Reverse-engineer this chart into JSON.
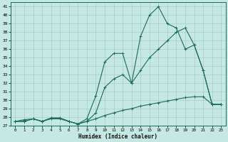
{
  "xlabel": "Humidex (Indice chaleur)",
  "bg_color": "#c5e8e2",
  "grid_color": "#a8ccca",
  "line_color": "#1a6b5a",
  "xlim": [
    -0.5,
    23.5
  ],
  "ylim": [
    27,
    41.5
  ],
  "yticks": [
    27,
    28,
    29,
    30,
    31,
    32,
    33,
    34,
    35,
    36,
    37,
    38,
    39,
    40,
    41
  ],
  "xticks": [
    0,
    1,
    2,
    3,
    4,
    5,
    6,
    7,
    8,
    9,
    10,
    11,
    12,
    13,
    14,
    15,
    16,
    17,
    18,
    19,
    20,
    21,
    22,
    23
  ],
  "line1_x": [
    0,
    1,
    2,
    3,
    4,
    5,
    6,
    7,
    8,
    9,
    10,
    11,
    12,
    13,
    14,
    15,
    16,
    17,
    18,
    19,
    20,
    21,
    22,
    23
  ],
  "line1_y": [
    27.5,
    27.7,
    27.8,
    27.5,
    27.8,
    27.8,
    27.5,
    27.2,
    27.8,
    30.5,
    34.5,
    35.5,
    35.5,
    32.0,
    37.5,
    40.0,
    41.0,
    39.0,
    38.5,
    36.0,
    36.5,
    33.5,
    29.5,
    29.5
  ],
  "line2_x": [
    0,
    1,
    2,
    3,
    4,
    5,
    6,
    7,
    8,
    9,
    10,
    11,
    12,
    13,
    14,
    15,
    16,
    17,
    18,
    19,
    20,
    21,
    22,
    23
  ],
  "line2_y": [
    27.5,
    27.5,
    27.8,
    27.5,
    27.9,
    27.9,
    27.5,
    27.2,
    27.5,
    28.5,
    31.5,
    32.5,
    33.0,
    32.0,
    33.5,
    35.0,
    36.0,
    37.0,
    38.0,
    38.5,
    36.5,
    33.5,
    29.5,
    29.5
  ],
  "line3_x": [
    0,
    1,
    2,
    3,
    4,
    5,
    6,
    7,
    8,
    9,
    10,
    11,
    12,
    13,
    14,
    15,
    16,
    17,
    18,
    19,
    20,
    21,
    22,
    23
  ],
  "line3_y": [
    27.5,
    27.5,
    27.8,
    27.5,
    27.9,
    27.9,
    27.5,
    27.2,
    27.5,
    27.8,
    28.2,
    28.5,
    28.8,
    29.0,
    29.3,
    29.5,
    29.7,
    29.9,
    30.1,
    30.3,
    30.4,
    30.4,
    29.5,
    29.5
  ]
}
